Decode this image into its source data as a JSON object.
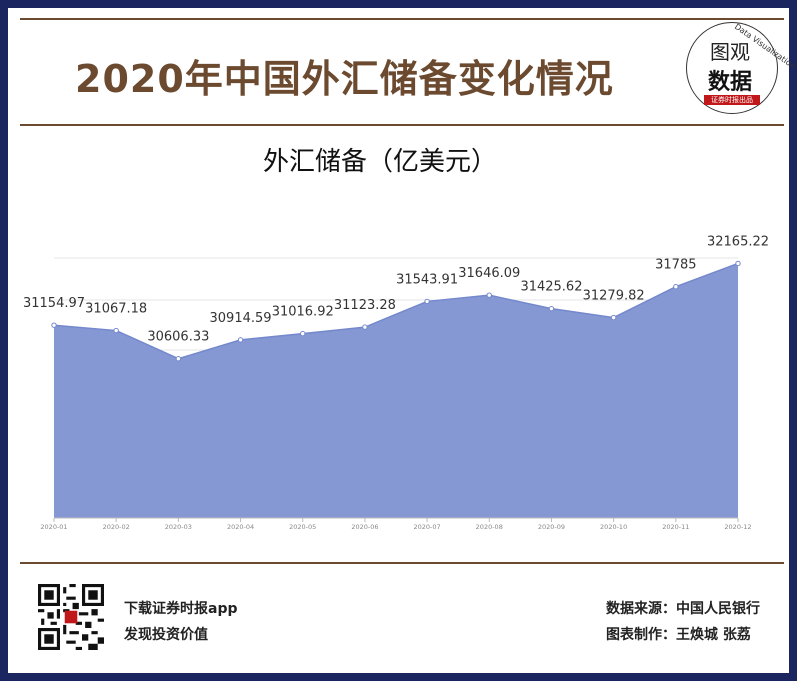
{
  "header": {
    "title": "2020年中国外汇储备变化情况",
    "logo_line1": "图观",
    "logo_line2": "数据",
    "logo_arc": "Data Visualization",
    "logo_tag": "证券时报出品"
  },
  "chart_data": {
    "type": "area",
    "title": "外汇储备（亿美元）",
    "x": [
      "2020-01",
      "2020-02",
      "2020-03",
      "2020-04",
      "2020-05",
      "2020-06",
      "2020-07",
      "2020-08",
      "2020-09",
      "2020-10",
      "2020-11",
      "2020-12"
    ],
    "series": [
      {
        "values": [
          31154.97,
          31067.18,
          30606.33,
          30914.59,
          31016.92,
          31123.28,
          31543.91,
          31646.09,
          31425.62,
          31279.82,
          31785,
          32165.22
        ],
        "labels": [
          "31154.97",
          "31067.18",
          "30606.33",
          "30914.59",
          "31016.92",
          "31123.28",
          "31543.91",
          "31646.09",
          "31425.62",
          "31279.82",
          "31785",
          "32165.22"
        ]
      }
    ],
    "ylim": [
      28000,
      32500
    ],
    "fill_color": "#8598d4",
    "line_color": "#7488cc",
    "grid": true
  },
  "footer": {
    "app_line1": "下载证券时报app",
    "app_line2": "发现投资价值",
    "source": "数据来源：中国人民银行",
    "credit": "图表制作：王焕城 张荔"
  }
}
